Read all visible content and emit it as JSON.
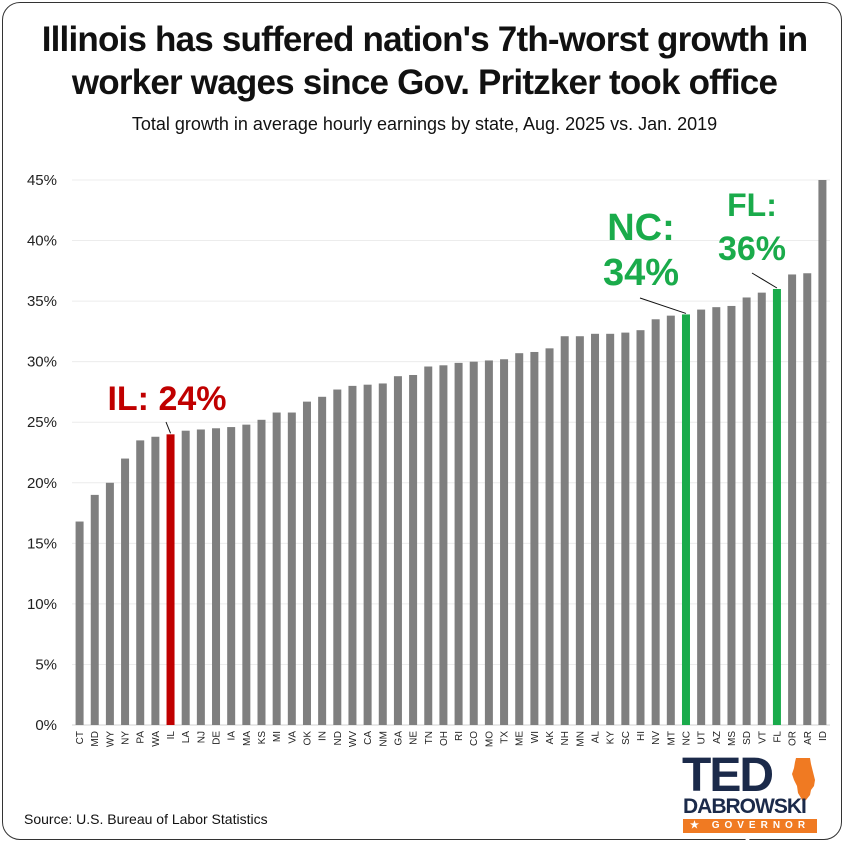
{
  "header": {
    "title_line1": "Illinois has suffered nation's 7th-worst growth in",
    "title_line2": "worker wages since Gov. Pritzker took office",
    "subtitle": "Total growth in average hourly earnings by state, Aug. 2025 vs. Jan. 2019"
  },
  "footer": {
    "source": "Source: U.S. Bureau of Labor Statistics"
  },
  "logo": {
    "name_top": "TED",
    "name_bottom": "DABROWSKI",
    "tagline": "★ GOVERNOR ★",
    "state_icon": "illinois-state-icon"
  },
  "colors": {
    "default_bar": "#7f7f7f",
    "highlight_red": "#c00000",
    "highlight_green": "#1aab4b",
    "logo_navy": "#1b2a4a",
    "logo_orange": "#f07a22"
  },
  "chart_data": {
    "type": "bar",
    "title": "Illinois has suffered nation's 7th-worst growth in worker wages since Gov. Pritzker took office",
    "subtitle": "Total growth in average hourly earnings by state, Aug. 2025 vs. Jan. 2019",
    "xlabel": "",
    "ylabel": "",
    "ylim": [
      0,
      45
    ],
    "yticks": [
      0,
      5,
      10,
      15,
      20,
      25,
      30,
      35,
      40,
      45
    ],
    "ytick_labels": [
      "0%",
      "5%",
      "10%",
      "15%",
      "20%",
      "25%",
      "30%",
      "35%",
      "40%",
      "45%"
    ],
    "grid": true,
    "legend": "none",
    "categories": [
      "CT",
      "MD",
      "WY",
      "NY",
      "PA",
      "WA",
      "IL",
      "LA",
      "NJ",
      "DE",
      "IA",
      "MA",
      "KS",
      "MI",
      "VA",
      "OK",
      "IN",
      "ND",
      "WV",
      "CA",
      "NM",
      "GA",
      "NE",
      "TN",
      "OH",
      "RI",
      "CO",
      "MO",
      "TX",
      "ME",
      "WI",
      "AK",
      "NH",
      "MN",
      "AL",
      "KY",
      "SC",
      "HI",
      "NV",
      "MT",
      "NC",
      "UT",
      "AZ",
      "MS",
      "SD",
      "VT",
      "FL",
      "OR",
      "AR",
      "ID"
    ],
    "values": [
      16.8,
      19.0,
      20.0,
      22.0,
      23.5,
      23.8,
      24.0,
      24.3,
      24.4,
      24.5,
      24.6,
      24.8,
      25.2,
      25.8,
      25.8,
      26.7,
      27.1,
      27.7,
      28.0,
      28.1,
      28.2,
      28.8,
      28.9,
      29.6,
      29.7,
      29.9,
      30.0,
      30.1,
      30.2,
      30.7,
      30.8,
      31.1,
      32.1,
      32.1,
      32.3,
      32.3,
      32.4,
      32.6,
      33.5,
      33.8,
      33.9,
      34.3,
      34.5,
      34.6,
      35.3,
      35.7,
      36.0,
      37.2,
      37.3,
      45.0
    ],
    "highlights": [
      {
        "category": "IL",
        "color": "red",
        "label_line1": "IL: 24%",
        "label_line2": ""
      },
      {
        "category": "NC",
        "color": "green",
        "label_line1": "NC:",
        "label_line2": "34%"
      },
      {
        "category": "FL",
        "color": "green",
        "label_line1": "FL:",
        "label_line2": "36%"
      }
    ]
  }
}
